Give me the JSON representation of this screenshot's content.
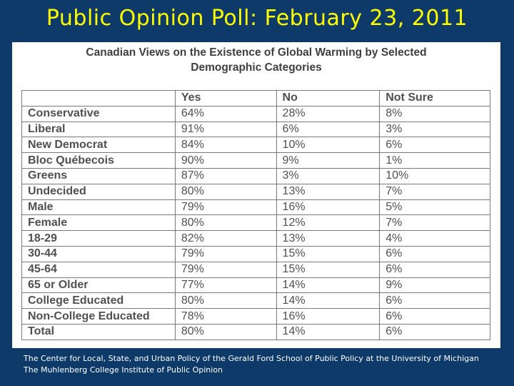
{
  "slide_title": "Public Opinion Poll: February 23, 2011",
  "chart_data": {
    "type": "table",
    "title": "Canadian Views on the Existence of Global Warming by Selected Demographic Categories",
    "title_lines": [
      "Canadian Views on the Existence of Global Warming by Selected",
      "Demographic Categories"
    ],
    "columns": [
      "",
      "Yes",
      "No",
      "Not Sure"
    ],
    "rows": [
      {
        "label": "Conservative",
        "values": [
          "64%",
          "28%",
          "8%"
        ]
      },
      {
        "label": "Liberal",
        "values": [
          "91%",
          "6%",
          "3%"
        ]
      },
      {
        "label": "New Democrat",
        "values": [
          "84%",
          "10%",
          "6%"
        ]
      },
      {
        "label": "Bloc Québecois",
        "values": [
          "90%",
          "9%",
          "1%"
        ]
      },
      {
        "label": "Greens",
        "values": [
          "87%",
          "3%",
          "10%"
        ]
      },
      {
        "label": "Undecided",
        "values": [
          "80%",
          "13%",
          "7%"
        ]
      },
      {
        "label": "Male",
        "values": [
          "79%",
          "16%",
          "5%"
        ]
      },
      {
        "label": "Female",
        "values": [
          "80%",
          "12%",
          "7%"
        ]
      },
      {
        "label": "18-29",
        "values": [
          "82%",
          "13%",
          "4%"
        ]
      },
      {
        "label": "30-44",
        "values": [
          "79%",
          "15%",
          "6%"
        ]
      },
      {
        "label": "45-64",
        "values": [
          "79%",
          "15%",
          "6%"
        ]
      },
      {
        "label": "65 or Older",
        "values": [
          "77%",
          "14%",
          "9%"
        ]
      },
      {
        "label": "College Educated",
        "values": [
          "80%",
          "14%",
          "6%"
        ]
      },
      {
        "label": "Non-College Educated",
        "values": [
          "78%",
          "16%",
          "6%"
        ]
      },
      {
        "label": "Total",
        "values": [
          "80%",
          "14%",
          "6%"
        ]
      }
    ]
  },
  "source_text": "The Center for Local, State, and Urban Policy of the Gerald Ford School of Public Policy at the University of Michigan The Muhlenberg College Institute of Public Opinion"
}
